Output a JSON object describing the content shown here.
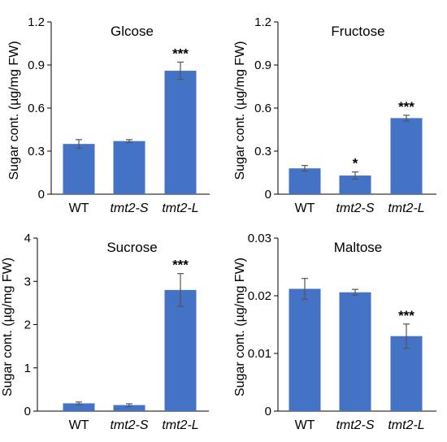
{
  "chart_data": [
    {
      "type": "bar",
      "title": "Glcose",
      "ylabel": "Sugar cont. (µg/mg FW)",
      "categories": [
        "WT",
        "tmt2-S",
        "tmt2-L"
      ],
      "category_italic": [
        false,
        true,
        true
      ],
      "values": [
        0.35,
        0.37,
        0.86
      ],
      "errors": [
        0.03,
        0.01,
        0.06
      ],
      "significance": [
        "",
        "",
        "***"
      ],
      "ylim": [
        0,
        1.2
      ],
      "yticks": [
        "0",
        "0.3",
        "0.6",
        "0.9",
        "1.2"
      ],
      "bar_color": "#4472C4"
    },
    {
      "type": "bar",
      "title": "Fructose",
      "ylabel": "Sugar cont. (µg/mg FW)",
      "categories": [
        "WT",
        "tmt2-S",
        "tmt2-L"
      ],
      "category_italic": [
        false,
        true,
        true
      ],
      "values": [
        0.18,
        0.13,
        0.53
      ],
      "errors": [
        0.02,
        0.025,
        0.02
      ],
      "significance": [
        "",
        "*",
        "***"
      ],
      "ylim": [
        0,
        1.2
      ],
      "yticks": [
        "0",
        "0.3",
        "0.6",
        "0.9",
        "1.2"
      ],
      "bar_color": "#4472C4"
    },
    {
      "type": "bar",
      "title": "Sucrose",
      "ylabel": "Sugar cont. (µg/mg FW)",
      "categories": [
        "WT",
        "tmt2-S",
        "tmt2-L"
      ],
      "category_italic": [
        false,
        true,
        true
      ],
      "values": [
        0.18,
        0.14,
        2.8
      ],
      "errors": [
        0.03,
        0.03,
        0.38
      ],
      "significance": [
        "",
        "",
        "***"
      ],
      "ylim": [
        0,
        4
      ],
      "yticks": [
        "0",
        "1",
        "2",
        "3",
        "4"
      ],
      "bar_color": "#4472C4"
    },
    {
      "type": "bar",
      "title": "Maltose",
      "ylabel": "Sugar cont. (µg/mg FW)",
      "categories": [
        "WT",
        "tmt2-S",
        "tmt2-L"
      ],
      "category_italic": [
        false,
        true,
        true
      ],
      "values": [
        0.0212,
        0.0206,
        0.013
      ],
      "errors": [
        0.0018,
        0.0005,
        0.0021
      ],
      "significance": [
        "",
        "",
        "***"
      ],
      "ylim": [
        0,
        0.03
      ],
      "yticks": [
        "0",
        "0.01",
        "0.02",
        "0.03"
      ],
      "bar_color": "#4472C4"
    }
  ]
}
